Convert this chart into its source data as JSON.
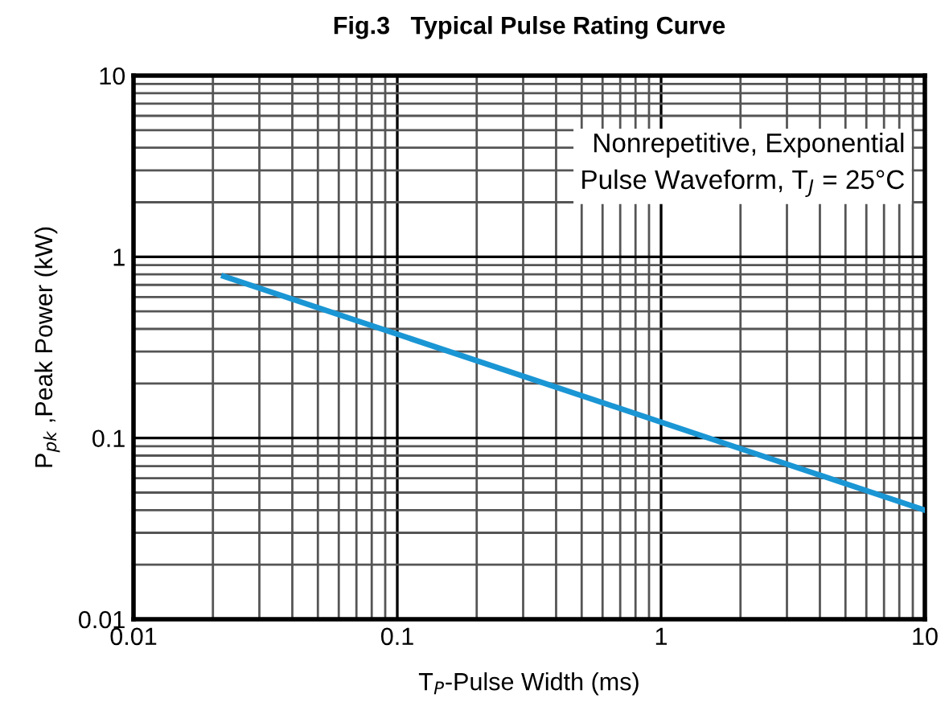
{
  "chart_data": {
    "type": "line",
    "title": "Fig.3   Typical Pulse Rating Curve",
    "xlabel": "T$_{P}$-Pulse Width (ms)",
    "ylabel": "P$_{pk}$ ,Peak Power (kW)",
    "series": [
      {
        "color": "#1a96d4",
        "x": [
          0.022,
          10
        ],
        "values": [
          0.78,
          0.04
        ]
      }
    ],
    "log": "xy",
    "xlim": [
      0.01,
      10
    ],
    "ylim": [
      0.01,
      10
    ],
    "xticks": [
      0.01,
      0.1,
      1,
      10
    ],
    "yticks": [
      0.01,
      0.1,
      1,
      10
    ],
    "grid": true,
    "marker": "none",
    "line_style": "solid",
    "legend": false,
    "annotations": [
      "Nonrepetitive, Exponential\nPulse Waveform, T$_{J}$ = 25°C"
    ]
  }
}
